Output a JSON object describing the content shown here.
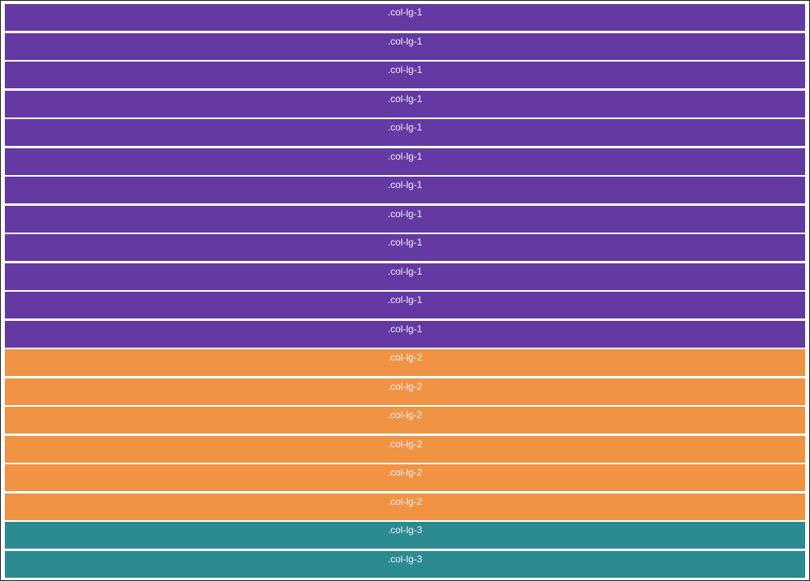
{
  "grid": {
    "columns": [
      {
        "label": ".col-lg-1",
        "color": "#6439a2"
      },
      {
        "label": ".col-lg-1",
        "color": "#6439a2"
      },
      {
        "label": ".col-lg-1",
        "color": "#6439a2"
      },
      {
        "label": ".col-lg-1",
        "color": "#6439a2"
      },
      {
        "label": ".col-lg-1",
        "color": "#6439a2"
      },
      {
        "label": ".col-lg-1",
        "color": "#6439a2"
      },
      {
        "label": ".col-lg-1",
        "color": "#6439a2"
      },
      {
        "label": ".col-lg-1",
        "color": "#6439a2"
      },
      {
        "label": ".col-lg-1",
        "color": "#6439a2"
      },
      {
        "label": ".col-lg-1",
        "color": "#6439a2"
      },
      {
        "label": ".col-lg-1",
        "color": "#6439a2"
      },
      {
        "label": ".col-lg-1",
        "color": "#6439a2"
      },
      {
        "label": ".col-lg-2",
        "color": "#f09343"
      },
      {
        "label": ".col-lg-2",
        "color": "#f09343"
      },
      {
        "label": ".col-lg-2",
        "color": "#f09343"
      },
      {
        "label": ".col-lg-2",
        "color": "#f09343"
      },
      {
        "label": ".col-lg-2",
        "color": "#f09343"
      },
      {
        "label": ".col-lg-2",
        "color": "#f09343"
      },
      {
        "label": ".col-lg-3",
        "color": "#2b8b91"
      },
      {
        "label": ".col-lg-3",
        "color": "#2b8b91"
      }
    ]
  }
}
